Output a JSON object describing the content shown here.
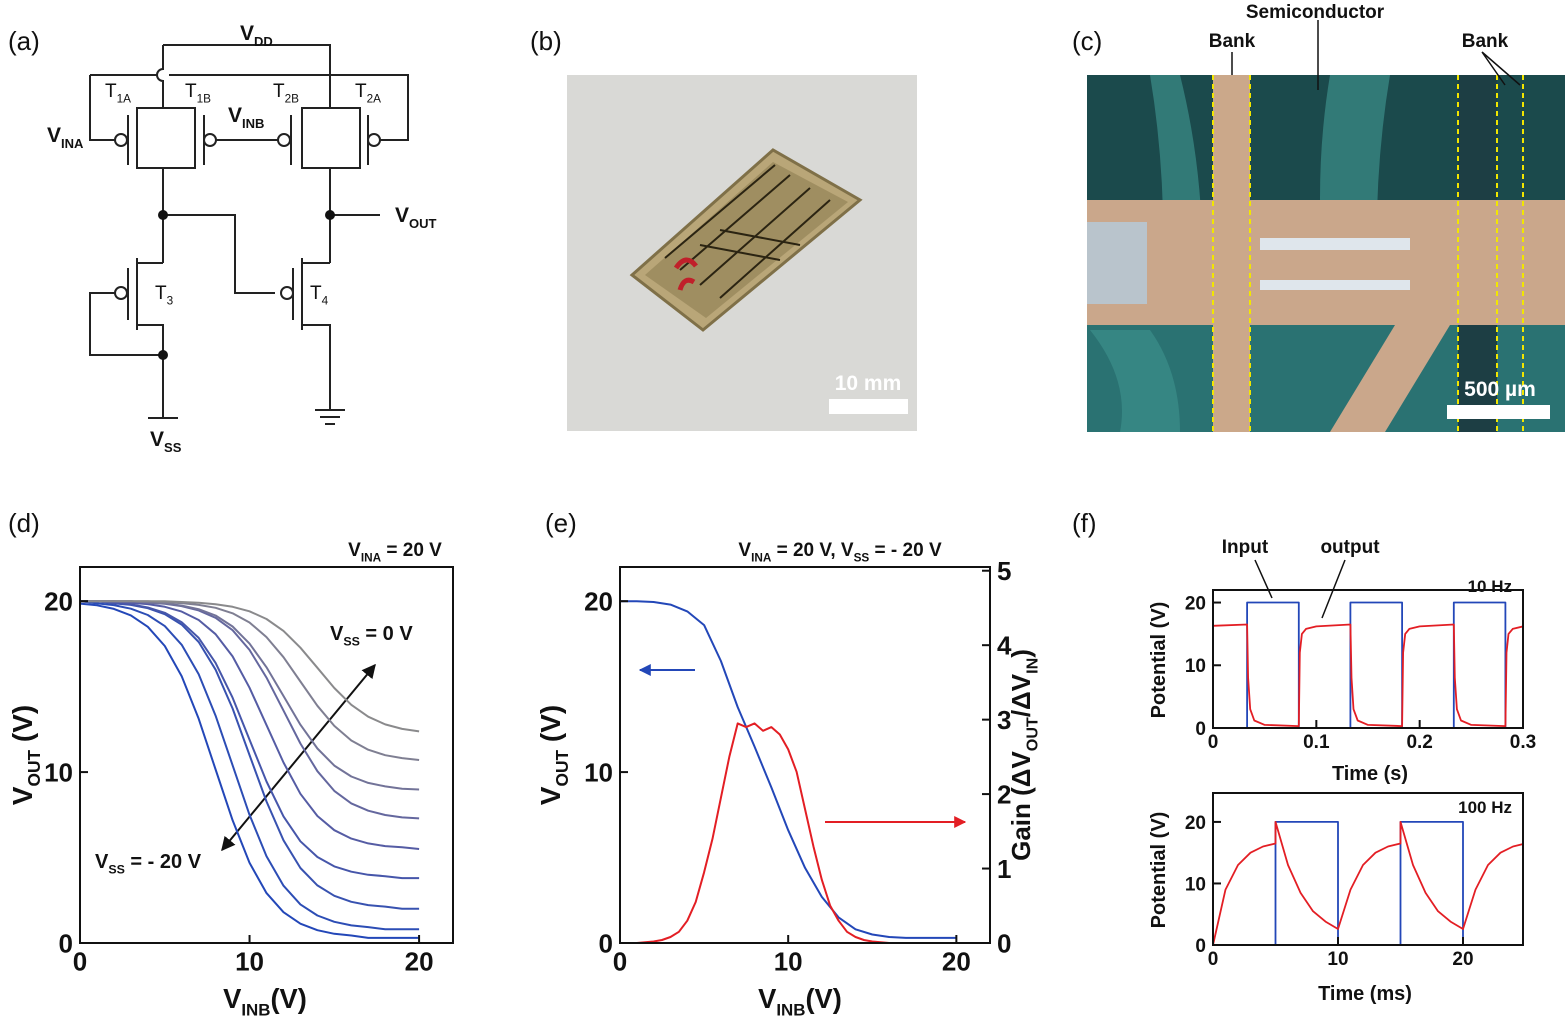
{
  "panel_labels": [
    "(a)",
    "(b)",
    "(c)",
    "(d)",
    "(e)",
    "(f)"
  ],
  "circuit": {
    "labels": [
      [
        "V",
        "DD"
      ],
      [
        "T",
        "1A"
      ],
      [
        "T",
        "1B"
      ],
      [
        "V",
        "INB"
      ],
      [
        "T",
        "2B"
      ],
      [
        "T",
        "2A"
      ],
      [
        "V",
        "INA"
      ],
      [
        "V",
        "OUT"
      ],
      [
        "T",
        "3"
      ],
      [
        "T",
        "4"
      ],
      [
        "V",
        "SS"
      ]
    ]
  },
  "photo": {
    "scale_bar": "10 mm"
  },
  "micrograph": {
    "labels": [
      "Bank",
      "Semiconductor",
      "Bank"
    ],
    "scale_bar": "500 µm"
  },
  "chart_data": [
    {
      "type": "line",
      "title": [
        "V",
        "INA",
        " = 20 V"
      ],
      "x_label": [
        "V",
        "INB",
        "(V)"
      ],
      "y_label": [
        "V",
        "OUT",
        " (V)"
      ],
      "annotations": [
        [
          "V",
          "SS",
          " = 0 V"
        ],
        [
          "V",
          "SS",
          " = - 20 V"
        ]
      ],
      "x": [
        0,
        1,
        2,
        3,
        4,
        5,
        6,
        7,
        8,
        9,
        10,
        11,
        12,
        13,
        14,
        15,
        16,
        17,
        18,
        19,
        20
      ],
      "series": [
        {
          "color": "#2347b8",
          "values": [
            19.86,
            19.76,
            19.55,
            19.17,
            18.5,
            17.38,
            15.61,
            13.12,
            10.15,
            7.18,
            4.69,
            2.92,
            1.8,
            1.13,
            0.75,
            0.54,
            0.44,
            0.3,
            0.3,
            0.3,
            0.3
          ]
        },
        {
          "color": "#2c4db5",
          "values": [
            20,
            19.87,
            19.77,
            19.56,
            19.19,
            18.54,
            17.45,
            15.72,
            13.3,
            10.4,
            7.5,
            5.08,
            3.35,
            2.26,
            1.61,
            1.24,
            1.03,
            0.93,
            0.8,
            0.8,
            0.8
          ]
        },
        {
          "color": "#3852b0",
          "values": [
            20,
            20,
            19.87,
            19.78,
            19.59,
            19.24,
            18.63,
            17.61,
            15.99,
            13.72,
            11,
            8.28,
            6.01,
            4.39,
            3.37,
            2.76,
            2.41,
            2.22,
            2.13,
            2,
            2
          ]
        },
        {
          "color": "#4656aa",
          "values": [
            20,
            20,
            19.89,
            19.81,
            19.63,
            19.32,
            18.77,
            17.85,
            16.39,
            14.35,
            11.9,
            9.45,
            7.41,
            5.95,
            5.03,
            4.48,
            4.17,
            3.99,
            3.91,
            3.8,
            3.8
          ]
        },
        {
          "color": "#555ca4",
          "values": [
            20,
            20,
            20,
            19.9,
            19.83,
            19.67,
            19.39,
            18.9,
            18.07,
            16.77,
            14.94,
            12.75,
            10.56,
            8.73,
            7.43,
            6.6,
            6.11,
            5.83,
            5.67,
            5.6,
            5.5
          ]
        },
        {
          "color": "#64679e",
          "values": [
            20,
            20,
            20,
            20,
            19.91,
            19.85,
            19.71,
            19.46,
            19.03,
            18.3,
            17.15,
            15.53,
            13.6,
            11.67,
            10.05,
            8.9,
            8.17,
            7.74,
            7.49,
            7.35,
            7.29
          ]
        },
        {
          "color": "#727398",
          "values": [
            20,
            20,
            20,
            20,
            19.92,
            19.87,
            19.74,
            19.53,
            19.16,
            18.52,
            17.52,
            16.13,
            14.45,
            12.77,
            11.38,
            10.38,
            9.74,
            9.37,
            9.16,
            9.03,
            8.98
          ]
        },
        {
          "color": "#7f7f92",
          "values": [
            20,
            20,
            20,
            20,
            20,
            19.93,
            19.89,
            19.78,
            19.61,
            19.29,
            18.75,
            17.9,
            16.72,
            15.3,
            13.88,
            12.7,
            11.85,
            11.31,
            10.99,
            10.82,
            10.71
          ]
        },
        {
          "color": "#8a8a8c",
          "values": [
            20,
            20,
            20,
            20,
            20,
            20,
            19.95,
            19.91,
            19.82,
            19.67,
            19.41,
            18.96,
            18.26,
            17.28,
            16.1,
            14.92,
            13.94,
            13.24,
            12.79,
            12.53,
            12.38
          ]
        }
      ],
      "xlim": [
        0,
        22
      ],
      "xticks": [
        0,
        10,
        20
      ],
      "ylim": [
        0,
        22
      ],
      "yticks": [
        0,
        10,
        20
      ]
    },
    {
      "type": "line",
      "title": [
        "V",
        "INA",
        " = 20 V, V",
        "SS",
        " = - 20 V"
      ],
      "x_label": [
        "V",
        "INB",
        "(V)"
      ],
      "y_label": [
        "V",
        "OUT",
        " (V)"
      ],
      "y2_label": [
        "Gain (ΔV",
        "OUT",
        "/ΔV",
        "IN",
        ")"
      ],
      "series": [
        {
          "color": "#2347b8",
          "x": [
            0,
            1,
            2,
            3,
            4,
            5,
            6,
            7,
            8,
            9,
            10,
            11,
            12,
            13,
            14,
            15,
            16,
            17,
            18,
            19,
            20
          ],
          "values": [
            20,
            20,
            19.95,
            19.8,
            19.4,
            18.6,
            16.5,
            13.8,
            11.5,
            9.1,
            6.6,
            4.4,
            2.7,
            1.5,
            0.8,
            0.5,
            0.35,
            0.3,
            0.3,
            0.3,
            0.3
          ]
        },
        {
          "color": "#e31e24",
          "axis": "y2",
          "x": [
            0,
            0.5,
            1,
            1.5,
            2,
            2.5,
            3,
            3.5,
            4,
            4.5,
            5,
            5.5,
            6,
            6.5,
            7,
            7.5,
            8,
            8.5,
            9,
            9.5,
            10,
            10.5,
            11,
            11.5,
            12,
            12.5,
            13,
            13.5,
            14,
            14.5,
            15,
            15.5,
            16,
            16.5,
            17,
            17.5,
            18,
            18.5,
            19,
            19.5,
            20
          ],
          "values": [
            0,
            0,
            0,
            0.01,
            0.02,
            0.04,
            0.08,
            0.15,
            0.3,
            0.55,
            0.95,
            1.4,
            1.95,
            2.5,
            2.95,
            2.9,
            2.95,
            2.85,
            2.9,
            2.8,
            2.6,
            2.3,
            1.8,
            1.3,
            0.85,
            0.5,
            0.3,
            0.15,
            0.08,
            0.04,
            0.02,
            0.01,
            0,
            0,
            0,
            0,
            0,
            0,
            0,
            0,
            0
          ]
        }
      ],
      "xlim": [
        0,
        22
      ],
      "xticks": [
        0,
        10,
        20
      ],
      "ylim": [
        0,
        22
      ],
      "yticks": [
        0,
        10,
        20
      ],
      "y2lim": [
        0,
        5.05
      ],
      "y2ticks": [
        0,
        1,
        2,
        3,
        4,
        5
      ]
    },
    {
      "type": "line",
      "x_label": "Time (s)",
      "y_label": "Potential (V)",
      "annotations": [
        "10 Hz"
      ],
      "series": [
        {
          "name": "Input",
          "color": "#2347b8",
          "x": [
            0,
            0.033,
            0.033,
            0.083,
            0.083,
            0.133,
            0.133,
            0.183,
            0.183,
            0.233,
            0.233,
            0.283,
            0.283,
            0.3
          ],
          "values": [
            0,
            0,
            20,
            20,
            0,
            0,
            20,
            20,
            0,
            0,
            20,
            20,
            0,
            0
          ]
        },
        {
          "name": "output",
          "color": "#e31e24",
          "x": [
            0,
            0.033,
            0.034,
            0.036,
            0.04,
            0.05,
            0.083,
            0.084,
            0.086,
            0.09,
            0.1,
            0.133,
            0.134,
            0.136,
            0.14,
            0.15,
            0.183,
            0.184,
            0.186,
            0.19,
            0.2,
            0.233,
            0.234,
            0.236,
            0.24,
            0.25,
            0.283,
            0.284,
            0.286,
            0.29,
            0.3
          ],
          "values": [
            16.3,
            16.5,
            8,
            3,
            1.2,
            0.5,
            0.3,
            12,
            15,
            15.8,
            16.2,
            16.5,
            8,
            3,
            1.2,
            0.5,
            0.3,
            12,
            15,
            15.8,
            16.2,
            16.5,
            8,
            3,
            1.2,
            0.5,
            0.3,
            12,
            15,
            15.8,
            16.2
          ]
        }
      ],
      "xlim": [
        0,
        0.3
      ],
      "xticks": [
        0,
        0.1,
        0.2,
        0.3
      ],
      "ylim": [
        0,
        22
      ],
      "yticks": [
        0,
        10,
        20
      ]
    },
    {
      "type": "line",
      "x_label": "Time (ms)",
      "y_label": "Potential (V)",
      "annotations": [
        "100 Hz"
      ],
      "series": [
        {
          "color": "#2347b8",
          "x": [
            0,
            5,
            5,
            10,
            10,
            15,
            15,
            20,
            20,
            25
          ],
          "values": [
            0,
            0,
            20,
            20,
            0,
            0,
            20,
            20,
            0,
            0
          ]
        },
        {
          "color": "#e31e24",
          "x": [
            0,
            1,
            2,
            3,
            4,
            5,
            5,
            6,
            7,
            8,
            9,
            10,
            11,
            12,
            13,
            14,
            15,
            15,
            16,
            17,
            18,
            19,
            20,
            21,
            22,
            23,
            24,
            25
          ],
          "values": [
            0,
            9,
            13,
            15,
            16,
            16.5,
            20,
            13,
            8.5,
            5.5,
            3.8,
            2.6,
            9,
            13,
            15,
            16,
            16.5,
            20,
            13,
            8.5,
            5.5,
            3.8,
            2.6,
            9,
            13,
            15,
            16,
            16.5
          ]
        }
      ],
      "xlim": [
        0,
        24.8
      ],
      "xticks": [
        0,
        10,
        20
      ],
      "ylim": [
        0,
        24.7
      ],
      "yticks": [
        0,
        10,
        20
      ]
    }
  ]
}
